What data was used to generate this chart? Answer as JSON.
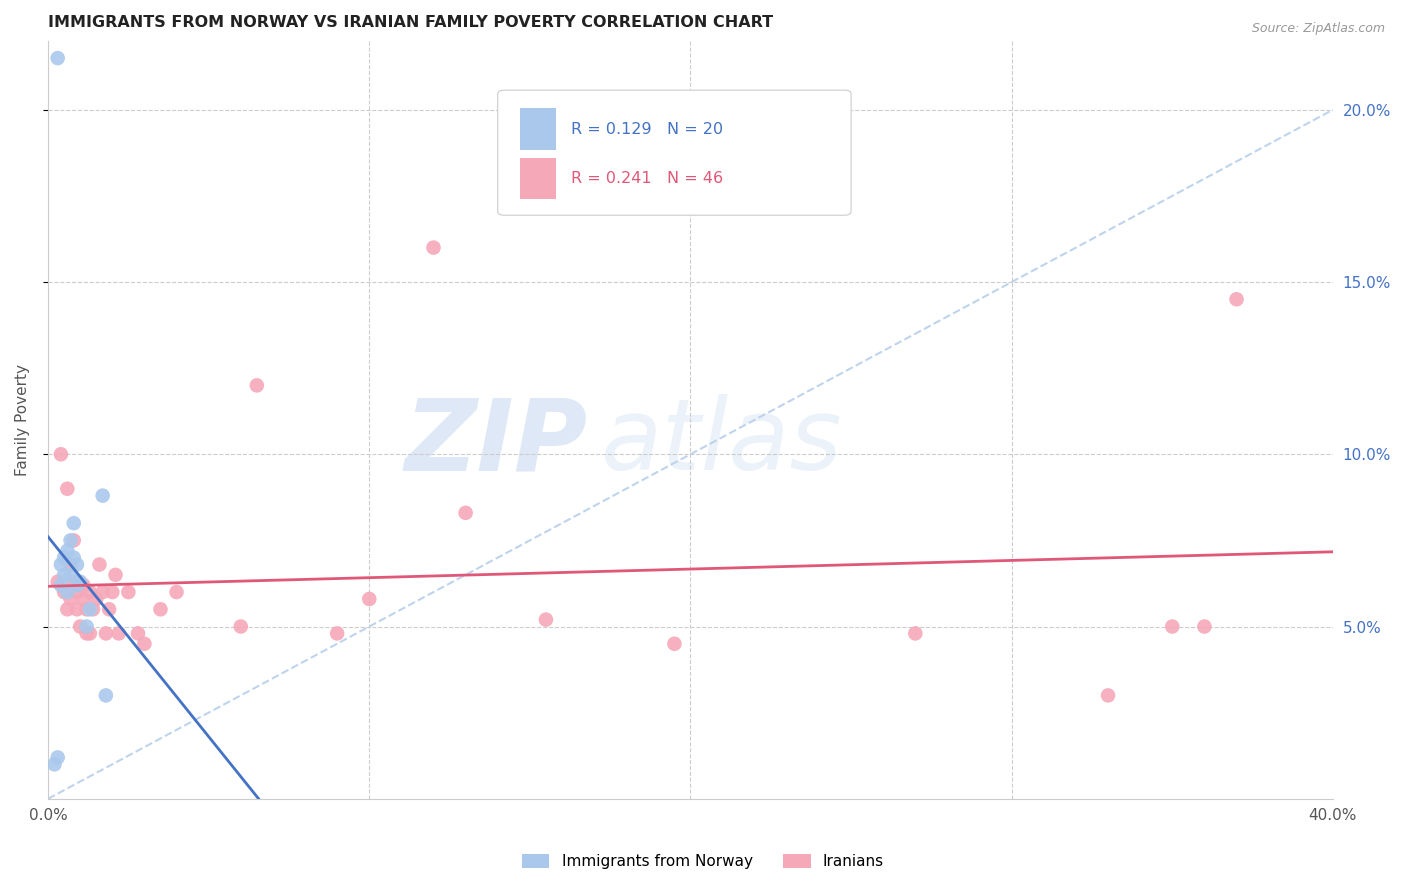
{
  "title": "IMMIGRANTS FROM NORWAY VS IRANIAN FAMILY POVERTY CORRELATION CHART",
  "source": "Source: ZipAtlas.com",
  "ylabel": "Family Poverty",
  "xlim": [
    0,
    0.4
  ],
  "ylim": [
    0,
    0.22
  ],
  "xtick_positions": [
    0.0,
    0.1,
    0.2,
    0.3,
    0.4
  ],
  "xtick_labels": [
    "0.0%",
    "",
    "",
    "",
    "40.0%"
  ],
  "yticks": [
    0.05,
    0.1,
    0.15,
    0.2
  ],
  "ytick_labels": [
    "5.0%",
    "10.0%",
    "15.0%",
    "20.0%"
  ],
  "norway_x": [
    0.002,
    0.003,
    0.003,
    0.004,
    0.004,
    0.005,
    0.005,
    0.006,
    0.006,
    0.007,
    0.007,
    0.008,
    0.008,
    0.009,
    0.009,
    0.01,
    0.012,
    0.013,
    0.017,
    0.018
  ],
  "norway_y": [
    0.01,
    0.012,
    0.215,
    0.062,
    0.068,
    0.07,
    0.065,
    0.072,
    0.06,
    0.075,
    0.065,
    0.08,
    0.07,
    0.068,
    0.062,
    0.063,
    0.05,
    0.055,
    0.088,
    0.03
  ],
  "iran_x": [
    0.003,
    0.004,
    0.005,
    0.006,
    0.006,
    0.007,
    0.007,
    0.008,
    0.008,
    0.009,
    0.009,
    0.01,
    0.01,
    0.011,
    0.011,
    0.012,
    0.012,
    0.013,
    0.013,
    0.014,
    0.015,
    0.016,
    0.017,
    0.018,
    0.019,
    0.02,
    0.021,
    0.022,
    0.025,
    0.028,
    0.03,
    0.035,
    0.04,
    0.06,
    0.065,
    0.09,
    0.1,
    0.12,
    0.13,
    0.155,
    0.195,
    0.27,
    0.33,
    0.35,
    0.36,
    0.37
  ],
  "iran_y": [
    0.063,
    0.1,
    0.06,
    0.055,
    0.09,
    0.058,
    0.068,
    0.063,
    0.075,
    0.055,
    0.06,
    0.05,
    0.062,
    0.058,
    0.062,
    0.055,
    0.048,
    0.06,
    0.048,
    0.055,
    0.058,
    0.068,
    0.06,
    0.048,
    0.055,
    0.06,
    0.065,
    0.048,
    0.06,
    0.048,
    0.045,
    0.055,
    0.06,
    0.05,
    0.12,
    0.048,
    0.058,
    0.16,
    0.083,
    0.052,
    0.045,
    0.048,
    0.03,
    0.05,
    0.05,
    0.145
  ],
  "norway_color": "#aac8eb",
  "iran_color": "#f5a8b8",
  "norway_line_color": "#4472c4",
  "iran_line_color": "#e05878",
  "dash_line_color": "#b8d0ea",
  "R_norway": 0.129,
  "N_norway": 20,
  "R_iran": 0.241,
  "N_iran": 46,
  "legend_norway_label": "Immigrants from Norway",
  "legend_iran_label": "Iranians",
  "watermark_zip": "ZIP",
  "watermark_atlas": "atlas",
  "marker_size": 110,
  "title_color": "#222222",
  "axis_label_color": "#555555",
  "tick_color_y_right": "#4472c4",
  "grid_color": "#cccccc",
  "background_color": "#ffffff"
}
